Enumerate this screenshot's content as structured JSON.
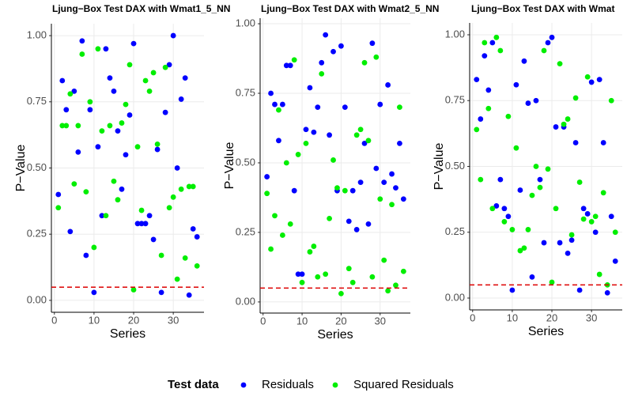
{
  "chart_data": [
    {
      "type": "scatter",
      "title": "Ljung−Box Test DAX with Wmat1_5_NN",
      "x_label": "Series",
      "y_label": "P−Value",
      "x": [
        1,
        2,
        3,
        4,
        5,
        6,
        7,
        8,
        9,
        10,
        11,
        12,
        13,
        14,
        15,
        16,
        17,
        18,
        19,
        20,
        21,
        22,
        23,
        24,
        25,
        26,
        27,
        28,
        29,
        30,
        31,
        32,
        33,
        34,
        35,
        36
      ],
      "series": [
        {
          "name": "Residuals",
          "color": "#0000ff",
          "values": [
            0.4,
            0.83,
            0.72,
            0.26,
            0.79,
            0.56,
            0.98,
            0.17,
            0.72,
            0.03,
            0.58,
            0.32,
            0.95,
            0.84,
            0.79,
            0.64,
            0.42,
            0.55,
            0.7,
            0.97,
            0.29,
            0.29,
            0.29,
            0.32,
            0.23,
            0.57,
            0.03,
            0.71,
            0.89,
            1.0,
            0.5,
            0.76,
            0.84,
            0.02,
            0.27,
            0.24
          ]
        },
        {
          "name": "Squared Residuals",
          "color": "#00ee00",
          "values": [
            0.35,
            0.66,
            0.66,
            0.78,
            0.44,
            0.66,
            0.93,
            0.41,
            0.75,
            0.2,
            0.95,
            0.64,
            0.32,
            0.66,
            0.45,
            0.38,
            0.67,
            0.74,
            0.89,
            0.04,
            0.58,
            0.34,
            0.83,
            0.79,
            0.86,
            0.59,
            0.17,
            0.88,
            0.35,
            0.39,
            0.08,
            0.42,
            0.16,
            0.43,
            0.43,
            0.13
          ]
        }
      ],
      "hline": {
        "value": 0.05,
        "color": "#dd0000"
      },
      "xlim": [
        -0.75,
        37.75
      ],
      "ylim": [
        -0.045,
        1.045
      ],
      "xticks": [
        0,
        10,
        20,
        30
      ],
      "yticks": [
        {
          "value": 0,
          "label": "0.00"
        },
        {
          "value": 0.25,
          "label": "0.25"
        },
        {
          "value": 0.5,
          "label": "0.50"
        },
        {
          "value": 0.75,
          "label": "0.75"
        },
        {
          "value": 1,
          "label": "1.00"
        }
      ],
      "grid": true
    },
    {
      "type": "scatter",
      "title": "Ljung−Box Test DAX with Wmat2_5_NN",
      "x_label": "Series",
      "y_label": "P−Value",
      "x": [
        1,
        2,
        3,
        4,
        5,
        6,
        7,
        8,
        9,
        10,
        11,
        12,
        13,
        14,
        15,
        16,
        17,
        18,
        19,
        20,
        21,
        22,
        23,
        24,
        25,
        26,
        27,
        28,
        29,
        30,
        31,
        32,
        33,
        34,
        35,
        36
      ],
      "series": [
        {
          "name": "Residuals",
          "color": "#0000ff",
          "values": [
            0.45,
            0.75,
            0.71,
            0.58,
            0.71,
            0.85,
            0.85,
            0.4,
            0.1,
            0.1,
            0.62,
            0.77,
            0.61,
            0.7,
            0.86,
            0.96,
            0.6,
            0.9,
            0.4,
            0.92,
            0.7,
            0.29,
            0.4,
            0.26,
            0.43,
            0.57,
            0.28,
            0.93,
            0.48,
            0.71,
            0.43,
            0.78,
            0.46,
            0.41,
            0.57,
            0.37
          ]
        },
        {
          "name": "Squared Residuals",
          "color": "#00ee00",
          "values": [
            0.39,
            0.19,
            0.31,
            0.69,
            0.24,
            0.5,
            0.28,
            0.87,
            0.53,
            0.07,
            0.57,
            0.18,
            0.2,
            0.09,
            0.82,
            0.1,
            0.3,
            0.51,
            0.41,
            0.03,
            0.4,
            0.12,
            0.07,
            0.6,
            0.62,
            0.86,
            0.58,
            0.09,
            0.88,
            0.37,
            0.15,
            0.04,
            0.35,
            0.06,
            0.7,
            0.11
          ]
        }
      ],
      "hline": {
        "value": 0.05,
        "color": "#dd0000"
      },
      "xlim": [
        -0.75,
        37.75
      ],
      "ylim": [
        -0.04,
        1.02
      ],
      "xticks": [
        0,
        10,
        20,
        30
      ],
      "yticks": [
        {
          "value": 0,
          "label": "0.00"
        },
        {
          "value": 0.25,
          "label": "0.25"
        },
        {
          "value": 0.5,
          "label": "0.50"
        },
        {
          "value": 0.75,
          "label": "0.75"
        },
        {
          "value": 1,
          "label": "1.00"
        }
      ],
      "grid": true
    },
    {
      "type": "scatter",
      "title": "Ljung−Box Test DAX with Wmat",
      "x_label": "Series",
      "y_label": "P−Value",
      "x": [
        1,
        2,
        3,
        4,
        5,
        6,
        7,
        8,
        9,
        10,
        11,
        12,
        13,
        14,
        15,
        16,
        17,
        18,
        19,
        20,
        21,
        22,
        23,
        24,
        25,
        26,
        27,
        28,
        29,
        30,
        31,
        32,
        33,
        34,
        35,
        36
      ],
      "series": [
        {
          "name": "Residuals",
          "color": "#0000ff",
          "values": [
            0.83,
            0.68,
            0.92,
            0.79,
            0.97,
            0.35,
            0.45,
            0.34,
            0.31,
            0.03,
            0.81,
            0.41,
            0.9,
            0.74,
            0.08,
            0.75,
            0.45,
            0.21,
            0.97,
            0.99,
            0.65,
            0.21,
            0.65,
            0.17,
            0.22,
            0.59,
            0.03,
            0.34,
            0.32,
            0.82,
            0.25,
            0.83,
            0.59,
            0.02,
            0.31,
            0.14
          ]
        },
        {
          "name": "Squared Residuals",
          "color": "#00ee00",
          "values": [
            0.64,
            0.45,
            0.97,
            0.72,
            0.34,
            0.99,
            0.94,
            0.29,
            0.69,
            0.26,
            0.57,
            0.18,
            0.19,
            0.26,
            0.39,
            0.5,
            0.42,
            0.94,
            0.49,
            0.06,
            0.34,
            0.89,
            0.66,
            0.68,
            0.24,
            0.76,
            0.44,
            0.3,
            0.84,
            0.29,
            0.31,
            0.09,
            0.4,
            0.05,
            0.75,
            0.25
          ]
        }
      ],
      "hline": {
        "value": 0.05,
        "color": "#dd0000"
      },
      "xlim": [
        -0.75,
        37.75
      ],
      "ylim": [
        -0.045,
        1.045
      ],
      "xticks": [
        0,
        10,
        20,
        30
      ],
      "yticks": [
        {
          "value": 0,
          "label": "0.00"
        },
        {
          "value": 0.25,
          "label": "0.25"
        },
        {
          "value": 0.5,
          "label": "0.50"
        },
        {
          "value": 0.75,
          "label": "0.75"
        },
        {
          "value": 1,
          "label": "1.00"
        }
      ],
      "grid": true
    }
  ],
  "legend": {
    "title": "Test data",
    "position": "bottom"
  }
}
